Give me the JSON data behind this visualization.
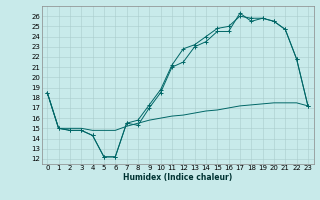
{
  "title": "",
  "xlabel": "Humidex (Indice chaleur)",
  "bg_color": "#c8eaea",
  "line_color": "#006666",
  "xlim": [
    -0.5,
    23.5
  ],
  "ylim": [
    11.5,
    27
  ],
  "yticks": [
    12,
    13,
    14,
    15,
    16,
    17,
    18,
    19,
    20,
    21,
    22,
    23,
    24,
    25,
    26
  ],
  "xticks": [
    0,
    1,
    2,
    3,
    4,
    5,
    6,
    7,
    8,
    9,
    10,
    11,
    12,
    13,
    14,
    15,
    16,
    17,
    18,
    19,
    20,
    21,
    22,
    23
  ],
  "line1_x": [
    0,
    1,
    2,
    3,
    4,
    5,
    6,
    7,
    8,
    9,
    10,
    11,
    12,
    13,
    14,
    15,
    16,
    17,
    18,
    19,
    20,
    21,
    22,
    23
  ],
  "line1_y": [
    18.5,
    15.0,
    14.8,
    14.8,
    14.3,
    12.2,
    12.2,
    15.5,
    15.3,
    17.0,
    18.5,
    21.0,
    21.5,
    23.0,
    23.5,
    24.5,
    24.5,
    26.3,
    25.5,
    25.8,
    25.5,
    24.7,
    21.8,
    17.2
  ],
  "line2_x": [
    0,
    1,
    2,
    3,
    4,
    5,
    6,
    7,
    8,
    9,
    10,
    11,
    12,
    13,
    14,
    15,
    16,
    17,
    18,
    19,
    20,
    21,
    22,
    23
  ],
  "line2_y": [
    18.5,
    15.0,
    14.8,
    14.8,
    14.3,
    12.2,
    12.2,
    15.5,
    15.8,
    17.3,
    18.8,
    21.2,
    22.8,
    23.2,
    24.0,
    24.8,
    25.0,
    26.0,
    25.8,
    25.8,
    25.5,
    24.7,
    21.8,
    17.2
  ],
  "line3_x": [
    0,
    1,
    2,
    3,
    4,
    5,
    6,
    7,
    8,
    9,
    10,
    11,
    12,
    13,
    14,
    15,
    16,
    17,
    18,
    19,
    20,
    21,
    22,
    23
  ],
  "line3_y": [
    18.5,
    15.0,
    15.0,
    15.0,
    14.8,
    14.8,
    14.8,
    15.2,
    15.5,
    15.8,
    16.0,
    16.2,
    16.3,
    16.5,
    16.7,
    16.8,
    17.0,
    17.2,
    17.3,
    17.4,
    17.5,
    17.5,
    17.5,
    17.2
  ],
  "tick_fontsize": 5.0,
  "xlabel_fontsize": 5.5,
  "grid_color": "#aacccc",
  "spine_color": "#888888"
}
